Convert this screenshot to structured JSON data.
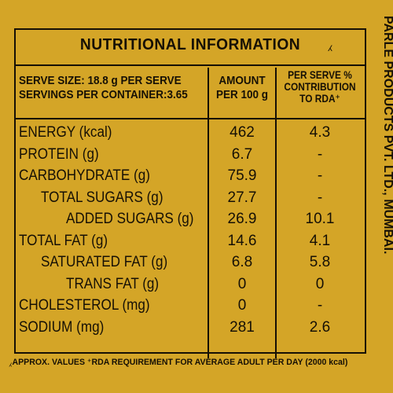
{
  "title": "NUTRITIONAL INFORMATION",
  "title_mark": "⁁",
  "header": {
    "serve_size": "SERVE SIZE: 18.8 g PER SERVE",
    "servings": "SERVINGS PER CONTAINER:3.65",
    "amount_line1": "AMOUNT",
    "amount_line2": "PER 100 g",
    "rda_line1": "PER SERVE %",
    "rda_line2": "CONTRIBUTION",
    "rda_line3": "TO RDA⁺"
  },
  "rows": [
    {
      "name": "ENERGY (kcal)",
      "amount": "462",
      "rda": "4.3"
    },
    {
      "name": "PROTEIN (g)",
      "amount": "6.7",
      "rda": "-"
    },
    {
      "name": "CARBOHYDRATE (g)",
      "amount": "75.9",
      "rda": "-"
    },
    {
      "name": "TOTAL SUGARS (g)",
      "amount": "27.7",
      "rda": "-"
    },
    {
      "name": "ADDED SUGARS (g)",
      "amount": "26.9",
      "rda": "10.1"
    },
    {
      "name": "TOTAL FAT (g)",
      "amount": "14.6",
      "rda": "4.1"
    },
    {
      "name": "SATURATED FAT (g)",
      "amount": "6.8",
      "rda": "5.8"
    },
    {
      "name": "TRANS FAT (g)",
      "amount": "0",
      "rda": "0"
    },
    {
      "name": "CHOLESTEROL (mg)",
      "amount": "0",
      "rda": "-"
    },
    {
      "name": "SODIUM (mg)",
      "amount": "281",
      "rda": "2.6"
    }
  ],
  "footnote": "⁁APPROX. VALUES ⁺RDA REQUIREMENT FOR AVERAGE ADULT PER DAY (2000 kcal)",
  "side_text": "PARLE PRODUCTS PVT. LTD., MUMBAI.",
  "colors": {
    "background": "#d4a527",
    "ink": "#161005"
  }
}
